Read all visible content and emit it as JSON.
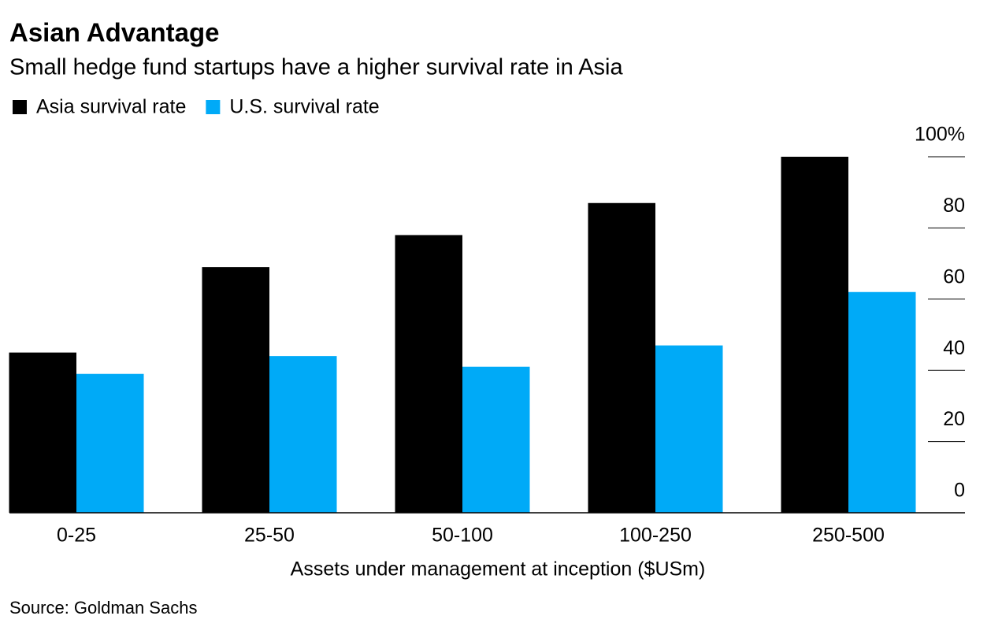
{
  "chart_data": {
    "type": "bar",
    "title": "Asian Advantage",
    "subtitle": "Small hedge fund startups have a higher survival rate in Asia",
    "x_label": "Assets under management at inception ($USm)",
    "source": "Source: Goldman Sachs",
    "categories": [
      "0-25",
      "25-50",
      "50-100",
      "100-250",
      "250-500"
    ],
    "series": [
      {
        "name": "Asia survival rate",
        "color": "#000000",
        "values": [
          45,
          69,
          78,
          87,
          100
        ]
      },
      {
        "name": "U.S. survival rate",
        "color": "#00aaf7",
        "values": [
          39,
          44,
          41,
          47,
          62
        ]
      }
    ],
    "ylim": [
      0,
      100
    ],
    "yticks": [
      0,
      20,
      40,
      60,
      80,
      {
        "value": 100,
        "label": "100%"
      }
    ],
    "y_axis_side": "right"
  }
}
